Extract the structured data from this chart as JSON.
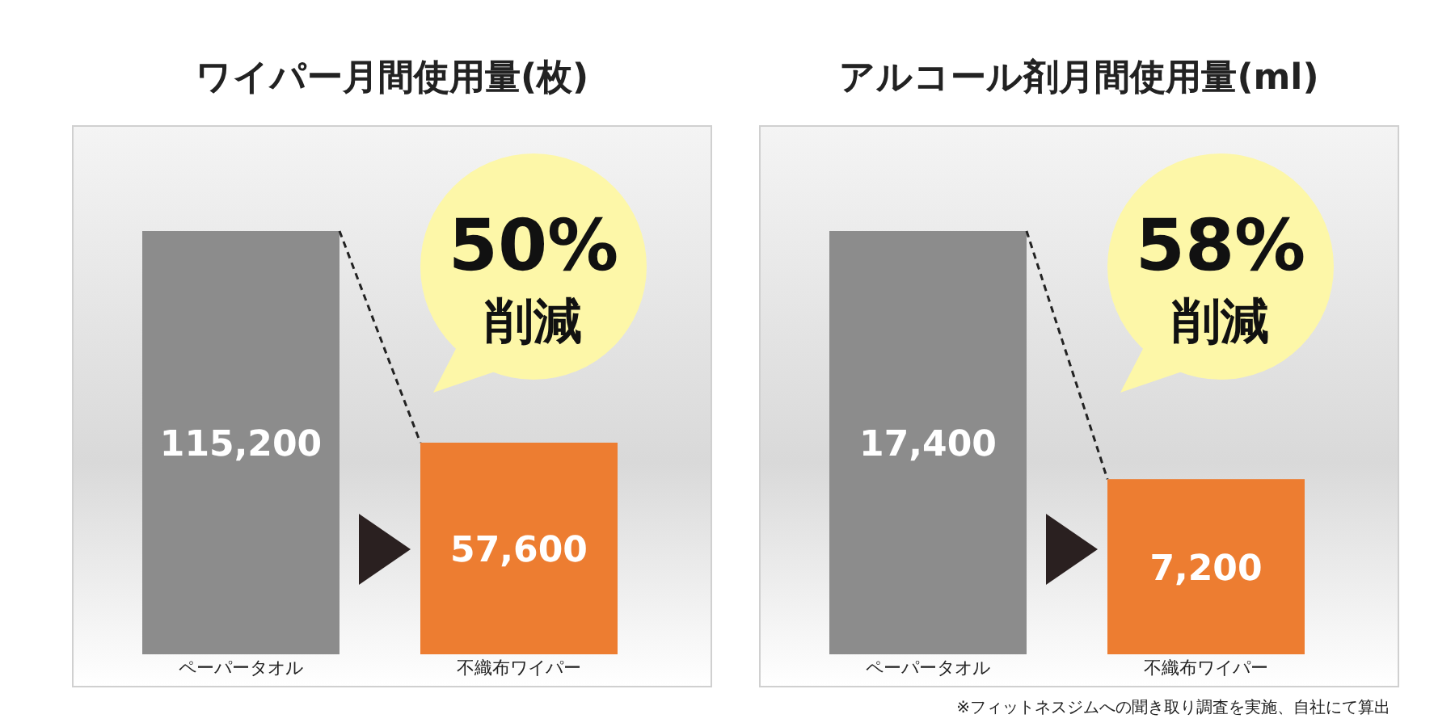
{
  "chart_data": [
    {
      "type": "bar",
      "title": "ワイパー月間使用量(枚)",
      "categories": [
        "ペーパータオル",
        "不織布ワイパー"
      ],
      "values": [
        115200,
        57600
      ],
      "colors": [
        "#8c8c8c",
        "#ed7d31"
      ],
      "value_labels": [
        "115,200",
        "57,600"
      ],
      "annotations": [
        "50%",
        "削減"
      ]
    },
    {
      "type": "bar",
      "title": "アルコール剤月間使用量(ml)",
      "categories": [
        "ペーパータオル",
        "不織布ワイパー"
      ],
      "values": [
        17400,
        7200
      ],
      "colors": [
        "#8c8c8c",
        "#ed7d31"
      ],
      "value_labels": [
        "17,400",
        "7,200"
      ],
      "annotations": [
        "58%",
        "削減",
        "※フィットネスジムへの聞き取り調査を実施、自社にて算出"
      ]
    }
  ]
}
